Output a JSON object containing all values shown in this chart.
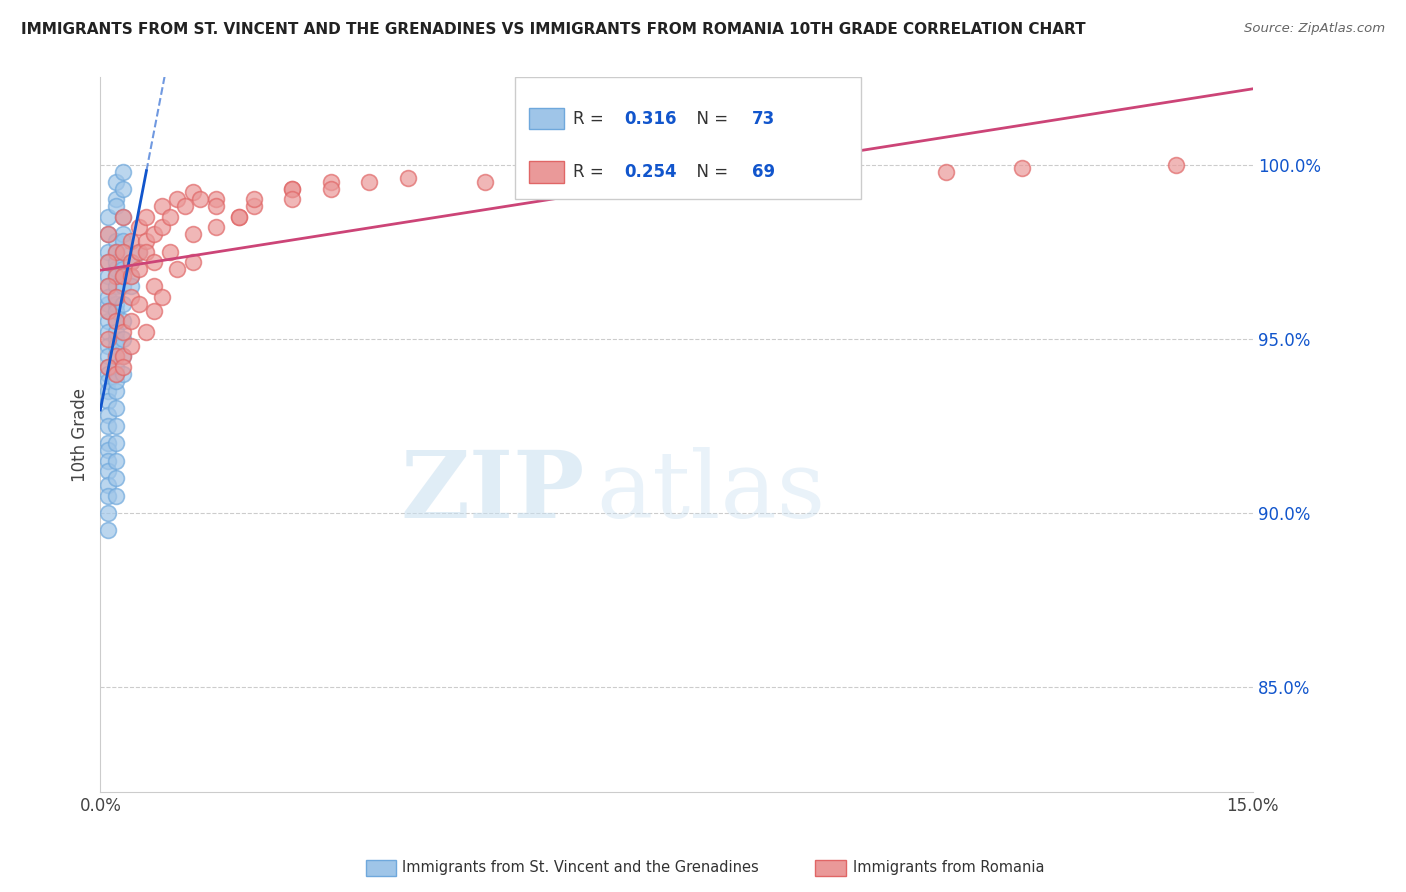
{
  "title": "IMMIGRANTS FROM ST. VINCENT AND THE GRENADINES VS IMMIGRANTS FROM ROMANIA 10TH GRADE CORRELATION CHART",
  "source": "Source: ZipAtlas.com",
  "ylabel": "10th Grade",
  "y_tick_vals": [
    0.85,
    0.9,
    0.95,
    1.0
  ],
  "y_tick_labels": [
    "85.0%",
    "90.0%",
    "95.0%",
    "100.0%"
  ],
  "xlim": [
    0.0,
    0.15
  ],
  "ylim": [
    0.82,
    1.025
  ],
  "legend1_R": "0.316",
  "legend1_N": "73",
  "legend2_R": "0.254",
  "legend2_N": "69",
  "blue_color": "#9fc5e8",
  "blue_edge_color": "#6fa8dc",
  "pink_color": "#ea9999",
  "pink_edge_color": "#e06666",
  "blue_line_color": "#1155cc",
  "pink_line_color": "#cc4477",
  "legend_label1": "Immigrants from St. Vincent and the Grenadines",
  "legend_label2": "Immigrants from Romania",
  "watermark_zip": "ZIP",
  "watermark_atlas": "atlas",
  "blue_x": [
    0.001,
    0.001,
    0.002,
    0.001,
    0.003,
    0.002,
    0.001,
    0.002,
    0.003,
    0.001,
    0.002,
    0.001,
    0.002,
    0.003,
    0.001,
    0.002,
    0.001,
    0.002,
    0.001,
    0.003,
    0.002,
    0.001,
    0.001,
    0.002,
    0.001,
    0.003,
    0.002,
    0.001,
    0.002,
    0.001,
    0.001,
    0.002,
    0.001,
    0.002,
    0.003,
    0.001,
    0.002,
    0.001,
    0.003,
    0.002,
    0.001,
    0.002,
    0.003,
    0.001,
    0.002,
    0.004,
    0.002,
    0.001,
    0.003,
    0.002,
    0.001,
    0.002,
    0.001,
    0.003,
    0.002,
    0.001,
    0.002,
    0.003,
    0.001,
    0.002,
    0.004,
    0.002,
    0.001,
    0.003,
    0.002,
    0.001,
    0.005,
    0.003,
    0.002,
    0.001,
    0.004,
    0.002,
    0.003
  ],
  "blue_y": [
    0.98,
    0.975,
    0.995,
    0.972,
    0.998,
    0.99,
    0.985,
    0.988,
    0.993,
    0.968,
    0.978,
    0.965,
    0.975,
    0.985,
    0.96,
    0.97,
    0.962,
    0.972,
    0.955,
    0.98,
    0.968,
    0.958,
    0.952,
    0.965,
    0.948,
    0.978,
    0.96,
    0.945,
    0.962,
    0.942,
    0.94,
    0.955,
    0.938,
    0.95,
    0.97,
    0.935,
    0.948,
    0.932,
    0.975,
    0.958,
    0.928,
    0.945,
    0.968,
    0.925,
    0.94,
    0.972,
    0.952,
    0.92,
    0.965,
    0.942,
    0.918,
    0.935,
    0.915,
    0.96,
    0.938,
    0.912,
    0.93,
    0.955,
    0.908,
    0.925,
    0.968,
    0.92,
    0.905,
    0.95,
    0.915,
    0.9,
    0.975,
    0.945,
    0.91,
    0.895,
    0.965,
    0.905,
    0.94
  ],
  "pink_x": [
    0.001,
    0.002,
    0.001,
    0.003,
    0.002,
    0.001,
    0.004,
    0.002,
    0.003,
    0.001,
    0.005,
    0.002,
    0.004,
    0.001,
    0.003,
    0.006,
    0.002,
    0.005,
    0.001,
    0.004,
    0.008,
    0.003,
    0.006,
    0.002,
    0.007,
    0.004,
    0.01,
    0.003,
    0.008,
    0.005,
    0.012,
    0.006,
    0.004,
    0.009,
    0.003,
    0.007,
    0.015,
    0.005,
    0.011,
    0.004,
    0.018,
    0.007,
    0.013,
    0.006,
    0.02,
    0.009,
    0.025,
    0.008,
    0.015,
    0.012,
    0.03,
    0.01,
    0.02,
    0.007,
    0.035,
    0.015,
    0.025,
    0.012,
    0.04,
    0.018,
    0.05,
    0.025,
    0.06,
    0.03,
    0.08,
    0.12,
    0.09,
    0.14,
    0.11
  ],
  "pink_y": [
    0.98,
    0.975,
    0.972,
    0.985,
    0.968,
    0.965,
    0.978,
    0.962,
    0.975,
    0.958,
    0.982,
    0.955,
    0.972,
    0.95,
    0.968,
    0.985,
    0.945,
    0.975,
    0.942,
    0.968,
    0.988,
    0.952,
    0.978,
    0.94,
    0.98,
    0.962,
    0.99,
    0.945,
    0.982,
    0.97,
    0.992,
    0.975,
    0.955,
    0.985,
    0.942,
    0.972,
    0.99,
    0.96,
    0.988,
    0.948,
    0.985,
    0.965,
    0.99,
    0.952,
    0.988,
    0.975,
    0.993,
    0.962,
    0.988,
    0.98,
    0.995,
    0.97,
    0.99,
    0.958,
    0.995,
    0.982,
    0.993,
    0.972,
    0.996,
    0.985,
    0.995,
    0.99,
    0.998,
    0.993,
    0.997,
    0.999,
    0.998,
    1.0,
    0.998
  ]
}
